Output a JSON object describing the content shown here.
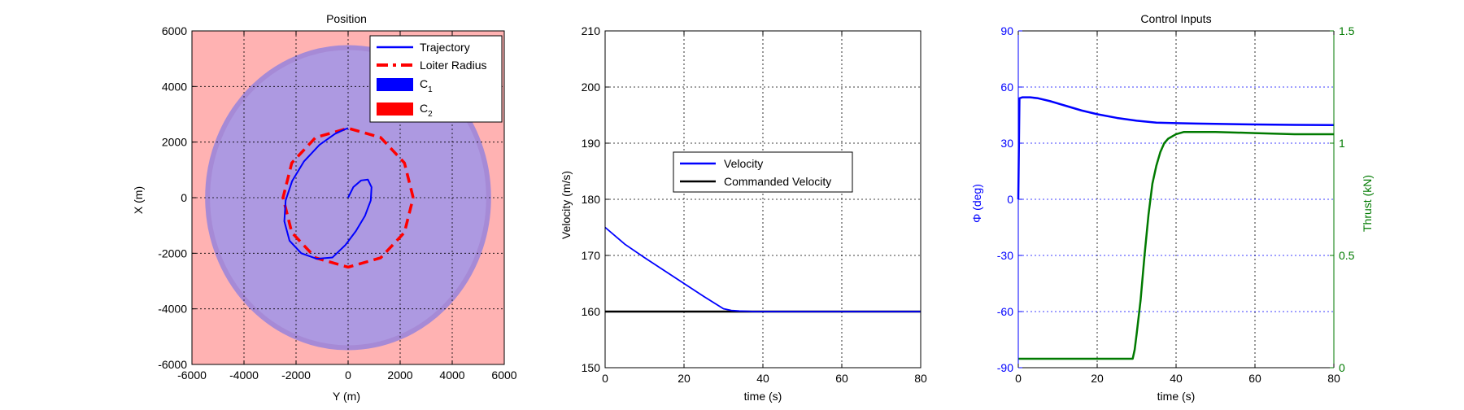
{
  "chart_data": [
    {
      "type": "line",
      "title": "Position",
      "xlabel": "Y (m)",
      "ylabel": "X (m)",
      "xlim": [
        -6000,
        6000
      ],
      "ylim": [
        -6000,
        6000
      ],
      "xticks": [
        -6000,
        -4000,
        -2000,
        0,
        2000,
        4000,
        6000
      ],
      "yticks": [
        -6000,
        -4000,
        -2000,
        0,
        2000,
        4000,
        6000
      ],
      "grid": true,
      "legend_position": "top-right",
      "regions": [
        {
          "name": "C1",
          "shape": "disc",
          "center": [
            0,
            0
          ],
          "radius": 5400,
          "color": "#0000ff"
        },
        {
          "name": "C2",
          "shape": "complement of disc",
          "center": [
            0,
            0
          ],
          "radius": 5400,
          "color": "#ff0000"
        }
      ],
      "series": [
        {
          "name": "Trajectory",
          "style": "solid",
          "color": "#0000ff",
          "x": [
            0,
            200,
            500,
            760,
            900,
            870,
            650,
            300,
            -100,
            -600,
            -1200,
            -1800,
            -2250,
            -2450,
            -2400,
            -2150,
            -1700,
            -1100,
            -500,
            -150,
            0
          ],
          "y": [
            0,
            380,
            620,
            650,
            380,
            -100,
            -650,
            -1200,
            -1700,
            -2150,
            -2200,
            -2000,
            -1550,
            -850,
            -100,
            600,
            1300,
            1900,
            2300,
            2450,
            2500
          ]
        },
        {
          "name": "Loiter Radius",
          "style": "dashed",
          "color": "#ff0000",
          "x": [
            2500,
            2165,
            1250,
            0,
            -1250,
            -2165,
            -2500,
            -2165,
            -1250,
            0,
            1250,
            2165,
            2500
          ],
          "y": [
            0,
            1250,
            2165,
            2500,
            2165,
            1250,
            0,
            -1250,
            -2165,
            -2500,
            -2165,
            -1250,
            0
          ]
        }
      ],
      "legend": [
        "Trajectory",
        "Loiter Radius",
        "C",
        "C"
      ],
      "legend_subscripts": [
        "1",
        "2"
      ]
    },
    {
      "type": "line",
      "title": "",
      "xlabel": "time (s)",
      "ylabel": "Velocity (m/s)",
      "xlim": [
        0,
        80
      ],
      "ylim": [
        150,
        210
      ],
      "xticks": [
        0,
        20,
        40,
        60,
        80
      ],
      "yticks": [
        150,
        160,
        170,
        180,
        190,
        200,
        210
      ],
      "grid": true,
      "legend_position": "center",
      "series": [
        {
          "name": "Velocity",
          "color": "#0000ff",
          "x": [
            0,
            5,
            10,
            15,
            20,
            25,
            30,
            32,
            34,
            36,
            38,
            40,
            80
          ],
          "y": [
            175,
            172,
            169.6,
            167.3,
            165.0,
            162.7,
            160.5,
            160.2,
            160.1,
            160.05,
            160.0,
            160.0,
            160.0
          ]
        },
        {
          "name": "Commanded Velocity",
          "color": "#000000",
          "x": [
            0,
            80
          ],
          "y": [
            160,
            160
          ]
        }
      ]
    },
    {
      "type": "line",
      "title": "Control Inputs",
      "xlabel": "time (s)",
      "ylabel": "Φ (deg)",
      "y2label": "Thrust (kN)",
      "xlim": [
        0,
        80
      ],
      "ylim": [
        -90,
        90
      ],
      "y2lim": [
        0,
        1.5
      ],
      "xticks": [
        0,
        20,
        40,
        60,
        80
      ],
      "yticks": [
        -90,
        -60,
        -30,
        0,
        30,
        60,
        90
      ],
      "y2ticks": [
        0,
        0.5,
        1,
        1.5
      ],
      "grid": true,
      "left_axis_color": "#0000ff",
      "right_axis_color": "#007a00",
      "series": [
        {
          "name": "Φ",
          "axis": "left",
          "color": "#0000ff",
          "x": [
            0,
            0.3,
            1,
            3,
            5,
            8,
            12,
            16,
            20,
            25,
            30,
            35,
            40,
            45,
            50,
            60,
            70,
            80
          ],
          "y": [
            0,
            54,
            54.5,
            54.5,
            54,
            52.5,
            50,
            47.5,
            45.5,
            43.5,
            42,
            41,
            40.7,
            40.5,
            40.3,
            40,
            39.8,
            39.7
          ]
        },
        {
          "name": "Thrust",
          "axis": "right",
          "color": "#007a00",
          "x": [
            0,
            29,
            29.5,
            30,
            31,
            32,
            33,
            34,
            35,
            36,
            37,
            38,
            39,
            40,
            42,
            45,
            50,
            60,
            70,
            80
          ],
          "y": [
            0.04,
            0.04,
            0.08,
            0.15,
            0.3,
            0.5,
            0.68,
            0.82,
            0.9,
            0.96,
            1.0,
            1.02,
            1.03,
            1.04,
            1.05,
            1.05,
            1.05,
            1.045,
            1.04,
            1.04
          ]
        }
      ]
    }
  ]
}
